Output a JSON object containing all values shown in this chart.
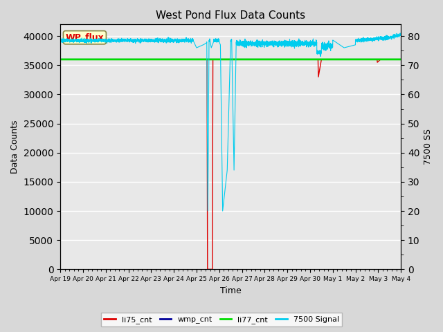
{
  "title": "West Pond Flux Data Counts",
  "xlabel": "Time",
  "ylabel_left": "Data Counts",
  "ylabel_right": "7500 SS",
  "ylim_left": [
    0,
    42000
  ],
  "ylim_right": [
    0,
    84
  ],
  "yticks_left": [
    0,
    5000,
    10000,
    15000,
    20000,
    25000,
    30000,
    35000,
    40000
  ],
  "yticks_right": [
    0,
    10,
    20,
    30,
    40,
    50,
    60,
    70,
    80
  ],
  "fig_bg": "#d8d8d8",
  "plot_bg": "#e8e8e8",
  "grid_color": "#f8f8f8",
  "legend_label": "WP_flux",
  "legend_box_color": "#ffffcc",
  "legend_border_color": "#888844",
  "li75_color": "#dd0000",
  "wmp_color": "#000099",
  "li77_color": "#00dd00",
  "signal7500_color": "#00ccee",
  "li77_value": 36000,
  "xtick_positions": [
    0,
    1,
    2,
    3,
    4,
    5,
    6,
    7,
    8,
    9,
    10,
    11,
    12,
    13,
    14,
    15
  ],
  "xtick_labels": [
    "Apr 19",
    "Apr 20",
    "Apr 21",
    "Apr 22",
    "Apr 23",
    "Apr 24",
    "Apr 25",
    "Apr 26",
    "Apr 27",
    "Apr 28",
    "Apr 29",
    "Apr 30",
    "May 1",
    "May 2",
    "May 3",
    "May 4"
  ]
}
